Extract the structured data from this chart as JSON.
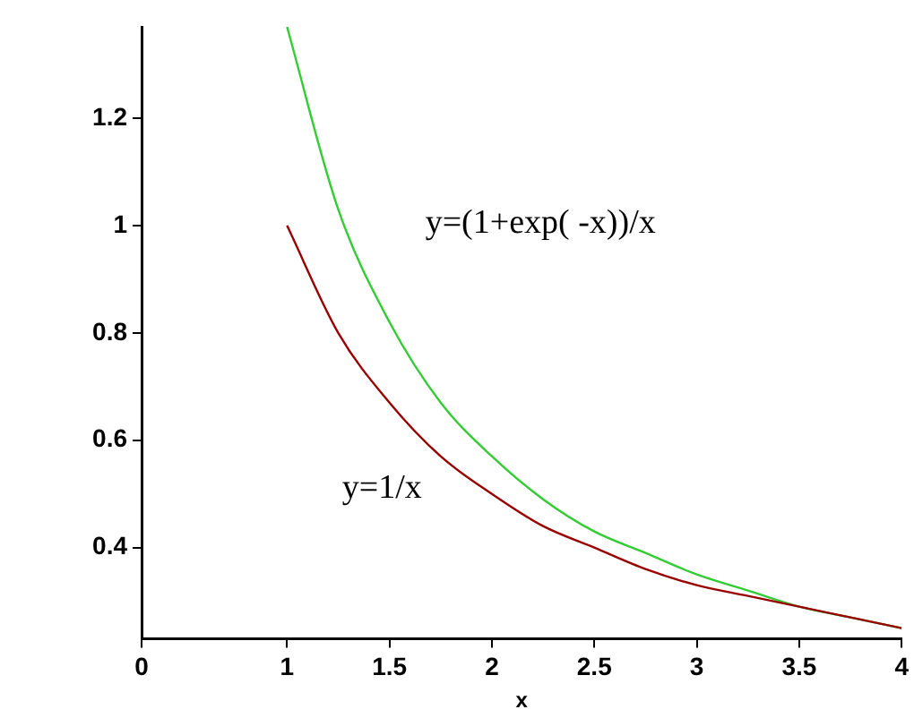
{
  "chart_data": {
    "type": "line",
    "xlabel": "x",
    "x": [
      1,
      1.25,
      1.5,
      1.75,
      2,
      2.25,
      2.5,
      2.75,
      3,
      3.25,
      3.5,
      3.75,
      4
    ],
    "series": [
      {
        "name": "y=1/x",
        "color": "#990000",
        "values": [
          1,
          0.8,
          0.67,
          0.57,
          0.5,
          0.44,
          0.4,
          0.36,
          0.33,
          0.31,
          0.29,
          0.27,
          0.25
        ]
      },
      {
        "name": "y=(1+exp( -x))/x",
        "color": "#33cc33",
        "values": [
          1.37,
          1.03,
          0.82,
          0.67,
          0.57,
          0.49,
          0.43,
          0.39,
          0.35,
          0.32,
          0.29,
          0.27,
          0.25
        ]
      }
    ],
    "xlim": [
      0.29,
      4
    ],
    "xticks": [
      {
        "value": 0.29,
        "label": "0"
      },
      1,
      1.5,
      2,
      2.5,
      3,
      3.5,
      4
    ],
    "ylim": [
      0.23,
      1.37
    ],
    "yticks": [
      0.4,
      0.6,
      0.8,
      1,
      1.2
    ],
    "grid": false,
    "legend": false,
    "marker": "none",
    "line_style": "solid"
  }
}
